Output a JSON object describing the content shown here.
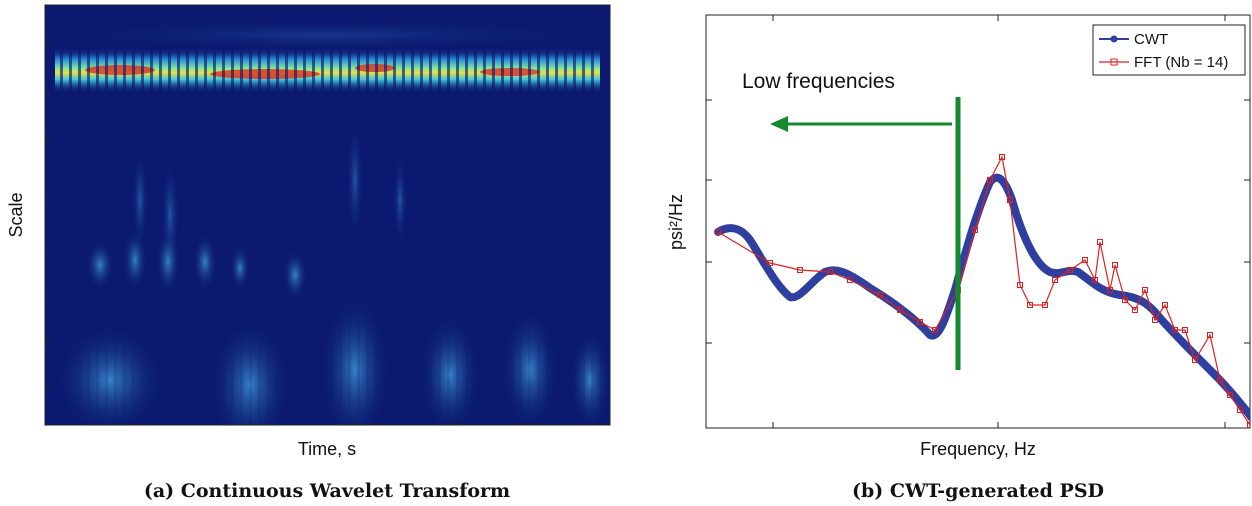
{
  "panels": [
    {
      "x_label": "Time, s",
      "y_label": "Scale",
      "caption": "(a) Continuous Wavelet Transform"
    },
    {
      "x_label": "Frequency, Hz",
      "y_label": "psi²/Hz",
      "annotation": "Low frequencies",
      "legend": [
        "CWT",
        "FFT (Nb = 14)"
      ],
      "caption": "(b) CWT-generated PSD"
    }
  ]
}
